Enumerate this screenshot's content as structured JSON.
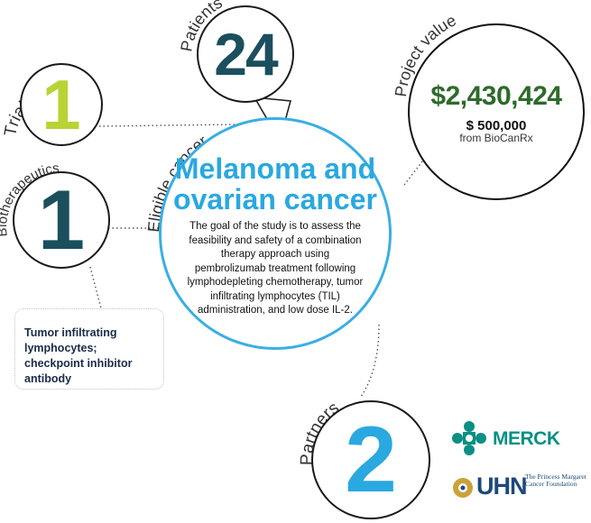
{
  "trial_sites": {
    "label": "Trial sites",
    "value": "1"
  },
  "patients": {
    "label": "Patients",
    "value": "24"
  },
  "biotherapeutics": {
    "label": "Biotherapeutics",
    "value": "1",
    "description": "Tumor infiltrating lymphocytes; checkpoint inhibitor antibody"
  },
  "project_value": {
    "label": "Project value",
    "amount": "$2,430,424",
    "sub_amount": "$ 500,000",
    "sub_source": "from BioCanRx"
  },
  "eligible_cancer": {
    "label": "Eligible cancer",
    "title": "Melanoma and ovarian cancer",
    "description": "The goal of the study is to assess the feasibility and safety of a combination therapy approach using pembrolizumab treatment following lymphodepleting chemotherapy, tumor infiltrating lymphocytes (TIL) administration, and low dose IL-2."
  },
  "partners": {
    "label": "Partners",
    "value": "2",
    "logos": [
      {
        "icon": "merck-logo-icon",
        "name": "MERCK",
        "color": "#0a8f84"
      },
      {
        "icon": "uhn-logo-icon",
        "name": "UHN",
        "subtitle": "The Princess Margaret Cancer Foundation",
        "color": "#1c4a7a"
      }
    ]
  },
  "colors": {
    "lime": "#b8d334",
    "teal_dark": "#1b4f5e",
    "blue": "#2aa8e0",
    "green": "#2e6b2b"
  }
}
